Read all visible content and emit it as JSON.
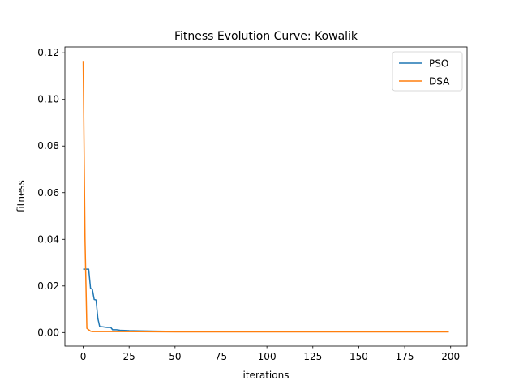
{
  "chart_data": {
    "type": "line",
    "title": "Fitness Evolution Curve: Kowalik",
    "xlabel": "iterations",
    "ylabel": "fitness",
    "xlim": [
      -9.95,
      208.95
    ],
    "ylim": [
      -0.0058,
      0.1225
    ],
    "xticks": [
      0,
      25,
      50,
      75,
      100,
      125,
      150,
      175,
      200
    ],
    "yticks": [
      0.0,
      0.02,
      0.04,
      0.06,
      0.08,
      0.1,
      0.12
    ],
    "ytick_labels": [
      "0.00",
      "0.02",
      "0.04",
      "0.06",
      "0.08",
      "0.10",
      "0.12"
    ],
    "grid": false,
    "legend_position": "upper right",
    "series": [
      {
        "name": "PSO",
        "color": "#1f77b4",
        "x": [
          0,
          1,
          2,
          3,
          4,
          5,
          6,
          7,
          8,
          9,
          10,
          11,
          12,
          13,
          14,
          15,
          16,
          17,
          18,
          19,
          20,
          25,
          30,
          40,
          50,
          75,
          100,
          125,
          150,
          175,
          199
        ],
        "y": [
          0.0272,
          0.0272,
          0.0272,
          0.0272,
          0.019,
          0.0185,
          0.0142,
          0.014,
          0.006,
          0.0025,
          0.0025,
          0.0024,
          0.0023,
          0.0022,
          0.0022,
          0.0022,
          0.0012,
          0.0012,
          0.0012,
          0.0011,
          0.001,
          0.0008,
          0.0007,
          0.0006,
          0.0005,
          0.0005,
          0.0004,
          0.0004,
          0.0004,
          0.0004,
          0.0004
        ]
      },
      {
        "name": "DSA",
        "color": "#ff7f0e",
        "x": [
          0,
          1,
          2,
          3,
          4,
          5,
          10,
          20,
          50,
          100,
          150,
          199
        ],
        "y": [
          0.1165,
          0.04,
          0.0018,
          0.0012,
          0.0006,
          0.0004,
          0.0004,
          0.0004,
          0.0003,
          0.0003,
          0.0003,
          0.0003
        ]
      }
    ]
  }
}
